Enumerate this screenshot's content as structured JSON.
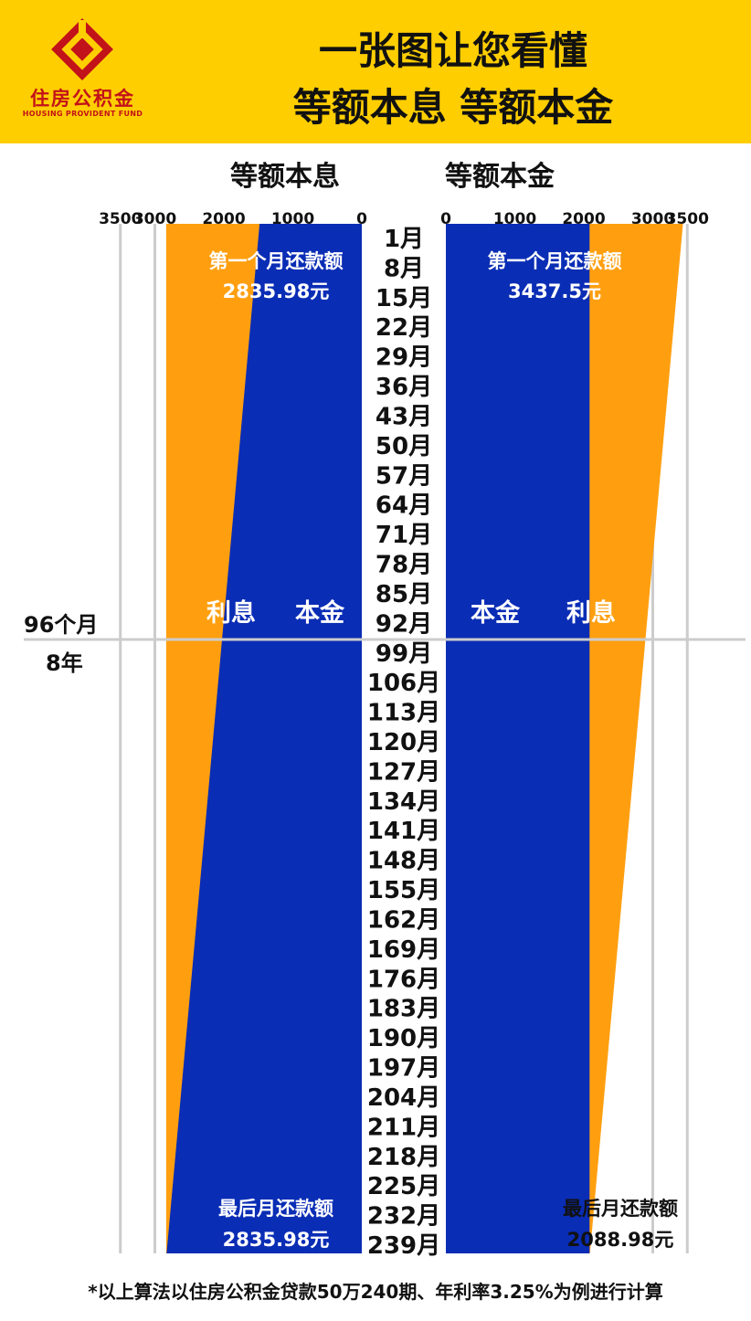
{
  "logo": {
    "name_cn": "住房公积金",
    "name_en": "HOUSING PROVIDENT FUND",
    "brand_color": "#c2121a"
  },
  "header": {
    "title_line1": "一张图让您看懂",
    "title_line2": "等额本息  等额本金",
    "bg_color": "#ffce00"
  },
  "side_marker": {
    "months": "96个月",
    "years": "8年"
  },
  "footnote": "*以上算法以住房公积金贷款50万240期、年利率3.25%为例进行计算",
  "colors": {
    "principal": "#0a2db5",
    "interest": "#ff9f10",
    "grid": "#cccccc"
  },
  "chart_data": [
    {
      "type": "area",
      "title": "等额本息",
      "orientation": "horizontal, values increase leftward",
      "xlim": [
        0,
        3500
      ],
      "x_ticks": [
        3500,
        3000,
        2000,
        1000,
        0
      ],
      "x_tick_labels": [
        "3500",
        "3000",
        "2000",
        "1000",
        "0"
      ],
      "categories": [
        "1月",
        "8月",
        "15月",
        "22月",
        "29月",
        "36月",
        "43月",
        "50月",
        "57月",
        "64月",
        "71月",
        "78月",
        "85月",
        "92月",
        "99月",
        "106月",
        "113月",
        "120月",
        "127月",
        "134月",
        "141月",
        "148月",
        "155月",
        "162月",
        "169月",
        "176月",
        "183月",
        "190月",
        "197月",
        "204月",
        "211月",
        "218月",
        "225月",
        "232月",
        "239月"
      ],
      "series": [
        {
          "name": "本金",
          "start": 1481.81,
          "end": 2830.29
        },
        {
          "name": "利息",
          "start": 1354.17,
          "end": 5.69
        }
      ],
      "total_payment": 2835.98,
      "annotations": [
        {
          "label": "第一个月还款额",
          "value": "2835.98元"
        },
        {
          "label": "最后月还款额",
          "value": "2835.98元"
        }
      ]
    },
    {
      "type": "area",
      "title": "等额本金",
      "orientation": "horizontal, values increase rightward",
      "xlim": [
        0,
        3500
      ],
      "x_ticks": [
        0,
        1000,
        2000,
        3000,
        3500
      ],
      "x_tick_labels": [
        "0",
        "1000",
        "2000",
        "3000",
        "3500"
      ],
      "series": [
        {
          "name": "本金",
          "start": 2083.33,
          "end": 2083.33
        },
        {
          "name": "利息",
          "start": 1354.17,
          "end": 5.65
        }
      ],
      "annotations": [
        {
          "label": "第一个月还款额",
          "value": "3437.5元"
        },
        {
          "label": "最后月还款额",
          "value": "2088.98元"
        }
      ]
    }
  ]
}
